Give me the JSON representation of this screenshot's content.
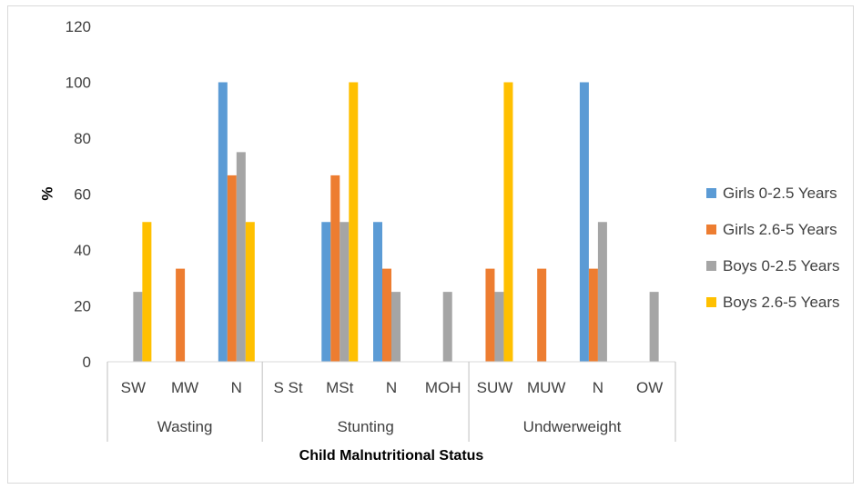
{
  "chart_data": {
    "type": "bar",
    "title": "",
    "xlabel": "Child Malnutritional  Status",
    "ylabel": "%",
    "ylim": [
      0,
      120
    ],
    "yticks": [
      0,
      20,
      40,
      60,
      80,
      100,
      120
    ],
    "grid": false,
    "legend_position": "right",
    "groups": [
      {
        "label": "Wasting",
        "categories": [
          "SW",
          "MW",
          "N"
        ]
      },
      {
        "label": "Stunting",
        "categories": [
          "S St",
          "MSt",
          "N",
          "MOH"
        ]
      },
      {
        "label": "Undwerweight",
        "categories": [
          "SUW",
          "MUW",
          "N",
          "OW"
        ]
      }
    ],
    "categories": [
      "SW",
      "MW",
      "N",
      "S St",
      "MSt",
      "N",
      "MOH",
      "SUW",
      "MUW",
      "N",
      "OW"
    ],
    "series": [
      {
        "name": "Girls 0-2.5 Years",
        "color": "#5b9bd5",
        "values": [
          0,
          0,
          100,
          0,
          50,
          50,
          0,
          0,
          0,
          100,
          0
        ]
      },
      {
        "name": "Girls 2.6-5 Years",
        "color": "#ed7d31",
        "values": [
          0,
          33.3,
          66.7,
          0,
          66.7,
          33.3,
          0,
          33.3,
          33.3,
          33.3,
          0
        ]
      },
      {
        "name": "Boys 0-2.5 Years",
        "color": "#a5a5a5",
        "values": [
          25,
          0,
          75,
          0,
          50,
          25,
          25,
          25,
          0,
          50,
          25
        ]
      },
      {
        "name": "Boys 2.6-5 Years",
        "color": "#ffc000",
        "values": [
          50,
          0,
          50,
          0,
          100,
          0,
          0,
          100,
          0,
          0,
          0
        ]
      }
    ]
  }
}
